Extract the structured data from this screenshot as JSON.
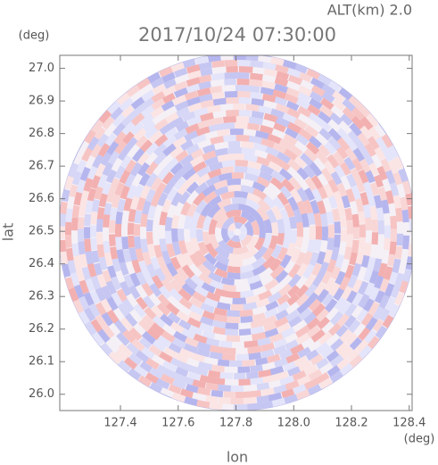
{
  "chart_data": {
    "type": "radar-field",
    "title": "2017/10/24 07:30:00",
    "subtitle": "ALT(km) 2.0",
    "x_label": "lon",
    "y_label": "lat",
    "x_unit": "(deg)",
    "y_unit": "(deg)",
    "xlim": [
      127.19,
      128.41
    ],
    "ylim": [
      25.95,
      27.04
    ],
    "xticks": [
      127.4,
      127.6,
      127.8,
      {
        "value": 128.0,
        "label": "128.0"
      },
      128.2,
      128.4
    ],
    "yticks": [
      {
        "value": 26.0,
        "label": "26.0"
      },
      26.1,
      26.2,
      26.3,
      26.4,
      26.5,
      26.6,
      26.7,
      26.8,
      26.9,
      {
        "value": 27.0,
        "label": "27.0"
      }
    ]
  }
}
